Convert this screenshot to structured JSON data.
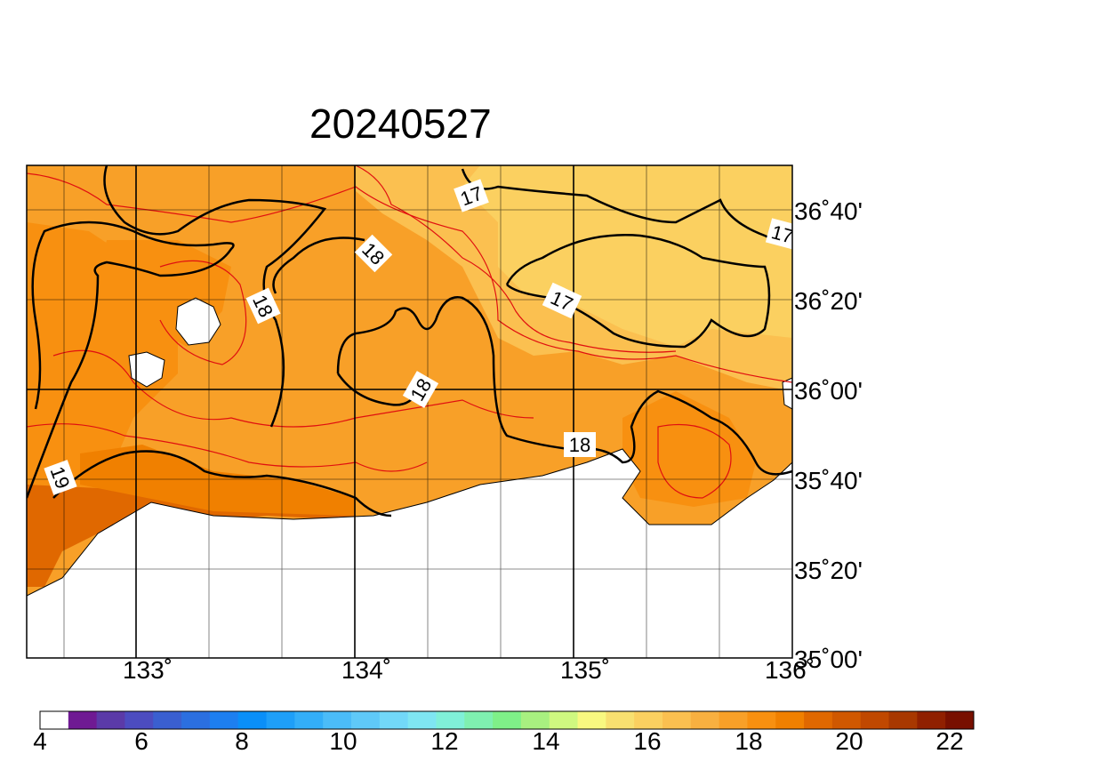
{
  "title": "20240527",
  "map": {
    "lon_labels": [
      "133˚",
      "134˚",
      "135˚",
      "136˚"
    ],
    "lat_labels": [
      "36˚40'",
      "36˚20'",
      "36˚00'",
      "35˚40'",
      "35˚20'",
      "35˚00'"
    ],
    "contour_labels": [
      "17",
      "17",
      "17",
      "18",
      "18",
      "18",
      "18",
      "19"
    ],
    "extent": {
      "lon": [
        132.5,
        136.0
      ],
      "lat": [
        35.0,
        36.83
      ]
    }
  },
  "colorbar": {
    "labels": [
      "4",
      "6",
      "8",
      "10",
      "12",
      "14",
      "16",
      "18",
      "20",
      "22"
    ],
    "colors": [
      "#ffffff",
      "#6f1a93",
      "#5b3aa8",
      "#4c4cc0",
      "#3a5fd0",
      "#2b6fe0",
      "#1d7ff0",
      "#0a8ff8",
      "#1e9ff8",
      "#33aef8",
      "#4bbcf8",
      "#5fc9f8",
      "#72d8f8",
      "#7fe6f2",
      "#80f0d8",
      "#7ff0b0",
      "#7ff088",
      "#a8f080",
      "#cff880",
      "#f8f880",
      "#f8e070",
      "#fbd060",
      "#fbc050",
      "#f8b040",
      "#f8a028",
      "#f89010",
      "#f08000",
      "#e06800",
      "#d05800",
      "#c04800",
      "#a83800",
      "#902000",
      "#781000"
    ]
  }
}
